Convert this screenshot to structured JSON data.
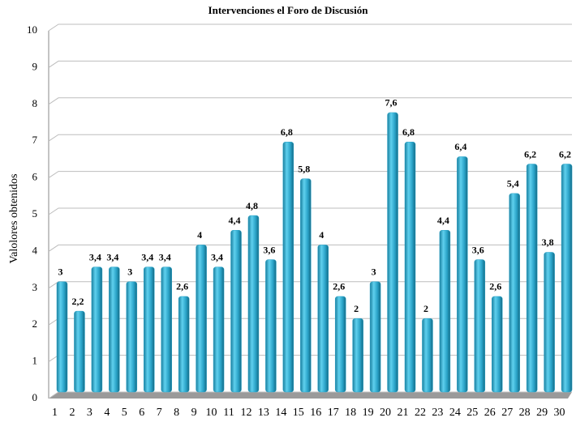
{
  "chart_data": {
    "type": "bar",
    "title": "Intervenciones el Foro de Discusión",
    "ylabel": "Valolores  obtenidos",
    "categories": [
      "1",
      "2",
      "3",
      "4",
      "5",
      "6",
      "7",
      "8",
      "9",
      "10",
      "11",
      "12",
      "13",
      "14",
      "15",
      "16",
      "17",
      "18",
      "19",
      "20",
      "21",
      "22",
      "23",
      "24",
      "25",
      "26",
      "27",
      "28",
      "29",
      "30"
    ],
    "values": [
      3,
      2.2,
      3.4,
      3.4,
      3,
      3.4,
      3.4,
      2.6,
      4,
      3.4,
      4.4,
      4.8,
      3.6,
      6.8,
      5.8,
      4,
      2.6,
      2,
      3,
      7.6,
      6.8,
      2,
      4.4,
      6.4,
      3.6,
      2.6,
      5.4,
      6.2,
      3.8,
      6.2
    ],
    "value_labels": [
      "3",
      "2,2",
      "3,4",
      "3,4",
      "3",
      "3,4",
      "3,4",
      "2,6",
      "4",
      "3,4",
      "4,4",
      "4,8",
      "3,6",
      "6,8",
      "5,8",
      "4",
      "2,6",
      "2",
      "3",
      "7,6",
      "6,8",
      "2",
      "4,4",
      "6,4",
      "3,6",
      "2,6",
      "5,4",
      "6,2",
      "3,8",
      "6,2"
    ],
    "color": "#2aa3c8",
    "ylim": [
      0,
      10
    ],
    "yticks": [
      0,
      1,
      2,
      3,
      4,
      5,
      6,
      7,
      8,
      9,
      10
    ],
    "grid": true
  }
}
